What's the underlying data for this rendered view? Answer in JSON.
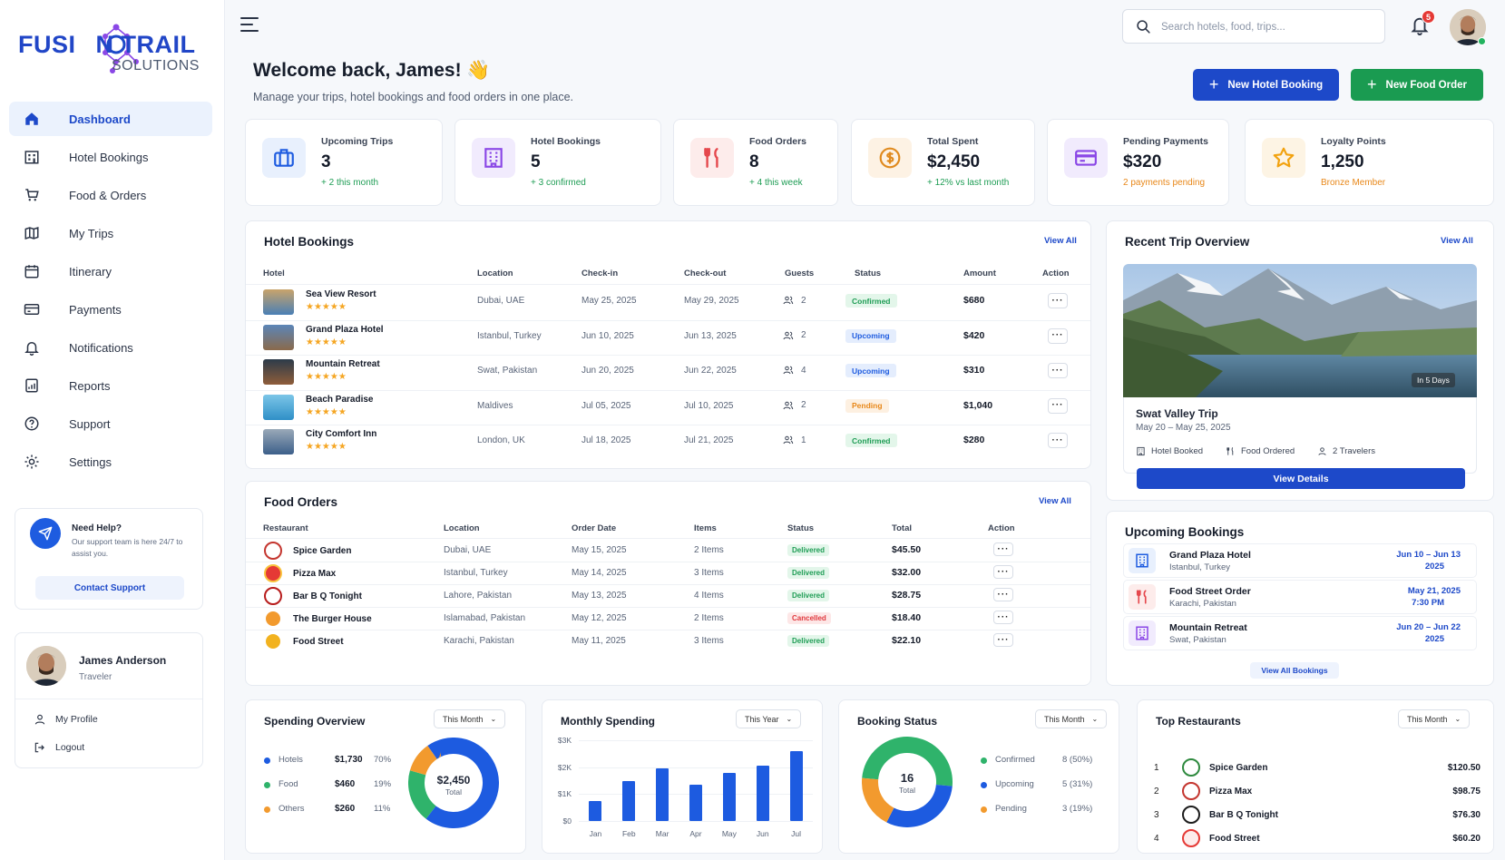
{
  "brand": {
    "name": "FUSI N TRAIL",
    "name_display": "FUSI_N TRAIL",
    "tagline": "SOLUTIONS"
  },
  "nav": [
    {
      "label": "Dashboard",
      "icon": "home-icon",
      "active": true
    },
    {
      "label": "Hotel Bookings",
      "icon": "hotel-icon"
    },
    {
      "label": "Food & Orders",
      "icon": "cart-icon"
    },
    {
      "label": "My Trips",
      "icon": "map-icon"
    },
    {
      "label": "Itinerary",
      "icon": "calendar-icon"
    },
    {
      "label": "Payments",
      "icon": "card-icon"
    },
    {
      "label": "Notifications",
      "icon": "bell-icon"
    },
    {
      "label": "Reports",
      "icon": "report-icon"
    },
    {
      "label": "Support",
      "icon": "help-icon"
    },
    {
      "label": "Settings",
      "icon": "gear-icon"
    }
  ],
  "help": {
    "title": "Need Help?",
    "text": "Our support team is here 24/7 to assist you.",
    "button": "Contact Support"
  },
  "user": {
    "name": "James Anderson",
    "role": "Traveler",
    "profile": "My Profile",
    "logout": "Logout"
  },
  "header": {
    "search_placeholder": "Search hotels, food, trips...",
    "notification_count": "5"
  },
  "welcome": {
    "title": "Welcome back, James! 👋",
    "subtitle": "Manage your trips, hotel bookings and food orders in one place."
  },
  "actions": {
    "new_hotel": "New Hotel Booking",
    "new_food": "New Food Order"
  },
  "stats": [
    {
      "label": "Upcoming Trips",
      "value": "3",
      "sub": "+ 2 this month",
      "sub_color": "#1f9d55",
      "icon": "suitcase-icon",
      "icon_bg": "#e8f0fd",
      "icon_color": "#1d5be0"
    },
    {
      "label": "Hotel Bookings",
      "value": "5",
      "sub": "+ 3 confirmed",
      "sub_color": "#1f9d55",
      "icon": "building-icon",
      "icon_bg": "#f1ebfd",
      "icon_color": "#8a47e6"
    },
    {
      "label": "Food Orders",
      "value": "8",
      "sub": "+ 4 this week",
      "sub_color": "#1f9d55",
      "icon": "utensils-icon",
      "icon_bg": "#fdeceb",
      "icon_color": "#e5484d"
    },
    {
      "label": "Total Spent",
      "value": "$2,450",
      "sub": "+ 12% vs last month",
      "sub_color": "#1f9d55",
      "icon": "dollar-icon",
      "icon_bg": "#fdf2e4",
      "icon_color": "#e08a1e"
    },
    {
      "label": "Pending Payments",
      "value": "$320",
      "sub": "2 payments pending",
      "sub_color": "#e8881a",
      "icon": "wallet-icon",
      "icon_bg": "#f1ebfd",
      "icon_color": "#8a47e6"
    },
    {
      "label": "Loyalty Points",
      "value": "1,250",
      "sub": "Bronze Member",
      "sub_color": "#e8881a",
      "icon": "star-icon",
      "icon_bg": "#fdf4e4",
      "icon_color": "#f2a20f"
    }
  ],
  "hotel_bookings": {
    "title": "Hotel Bookings",
    "view_all": "View All",
    "columns": [
      "Hotel",
      "Location",
      "Check-in",
      "Check-out",
      "Guests",
      "Status",
      "Amount",
      "Action"
    ],
    "rows": [
      {
        "hotel": "Sea View Resort",
        "rating": "★★★★★",
        "location": "Dubai, UAE",
        "checkin": "May 25, 2025",
        "checkout": "May 29, 2025",
        "guests": "2",
        "status": "Confirmed",
        "amount": "$680"
      },
      {
        "hotel": "Grand Plaza Hotel",
        "rating": "★★★★★",
        "location": "Istanbul, Turkey",
        "checkin": "Jun 10, 2025",
        "checkout": "Jun 13, 2025",
        "guests": "2",
        "status": "Upcoming",
        "amount": "$420"
      },
      {
        "hotel": "Mountain Retreat",
        "rating": "★★★★★",
        "location": "Swat, Pakistan",
        "checkin": "Jun 20, 2025",
        "checkout": "Jun 22, 2025",
        "guests": "4",
        "status": "Upcoming",
        "amount": "$310"
      },
      {
        "hotel": "Beach Paradise",
        "rating": "★★★★★",
        "location": "Maldives",
        "checkin": "Jul 05, 2025",
        "checkout": "Jul 10, 2025",
        "guests": "2",
        "status": "Pending",
        "amount": "$1,040"
      },
      {
        "hotel": "City Comfort Inn",
        "rating": "★★★★★",
        "location": "London, UK",
        "checkin": "Jul 18, 2025",
        "checkout": "Jul 21, 2025",
        "guests": "1",
        "status": "Confirmed",
        "amount": "$280"
      }
    ]
  },
  "food_orders": {
    "title": "Food Orders",
    "view_all": "View All",
    "columns": [
      "Restaurant",
      "Location",
      "Order Date",
      "Items",
      "Status",
      "Total",
      "Action"
    ],
    "rows": [
      {
        "restaurant": "Spice Garden",
        "location": "Dubai, UAE",
        "date": "May 15, 2025",
        "items": "2 Items",
        "status": "Delivered",
        "total": "$45.50"
      },
      {
        "restaurant": "Pizza Max",
        "location": "Istanbul, Turkey",
        "date": "May 14, 2025",
        "items": "3 Items",
        "status": "Delivered",
        "total": "$32.00"
      },
      {
        "restaurant": "Bar B Q Tonight",
        "location": "Lahore, Pakistan",
        "date": "May 13, 2025",
        "items": "4 Items",
        "status": "Delivered",
        "total": "$28.75"
      },
      {
        "restaurant": "The Burger House",
        "location": "Islamabad, Pakistan",
        "date": "May 12, 2025",
        "items": "2 Items",
        "status": "Cancelled",
        "total": "$18.40"
      },
      {
        "restaurant": "Food Street",
        "location": "Karachi, Pakistan",
        "date": "May 11, 2025",
        "items": "3 Items",
        "status": "Delivered",
        "total": "$22.10"
      }
    ]
  },
  "status_colors": {
    "Confirmed": {
      "bg": "#e3f6ea",
      "fg": "#1f9d55"
    },
    "Upcoming": {
      "bg": "#e4edfd",
      "fg": "#1d5be0"
    },
    "Pending": {
      "bg": "#fdf0e1",
      "fg": "#e8881a"
    },
    "Delivered": {
      "bg": "#e3f6ea",
      "fg": "#1f9d55"
    },
    "Cancelled": {
      "bg": "#fde7e7",
      "fg": "#e0393e"
    }
  },
  "recent_trip": {
    "title": "Recent Trip Overview",
    "view_all": "View All",
    "badge": "In 5 Days",
    "name": "Swat Valley Trip",
    "dates": "May 20 – May 25, 2025",
    "tags": [
      "Hotel Booked",
      "Food Ordered",
      "2 Travelers"
    ],
    "button": "View Details"
  },
  "upcoming_bookings": {
    "title": "Upcoming Bookings",
    "view_all": "View All Bookings",
    "items": [
      {
        "name": "Grand Plaza Hotel",
        "location": "Istanbul, Turkey",
        "date1": "Jun 10 – Jun 13",
        "date2": "2025",
        "icon": "building-icon",
        "icon_bg": "#e8f0fd",
        "icon_color": "#1d5be0"
      },
      {
        "name": "Food Street Order",
        "location": "Karachi, Pakistan",
        "date1": "May 21, 2025",
        "date2": "7:30 PM",
        "icon": "utensils-icon",
        "icon_bg": "#fdeceb",
        "icon_color": "#e5484d"
      },
      {
        "name": "Mountain Retreat",
        "location": "Swat, Pakistan",
        "date1": "Jun 20 – Jun 22",
        "date2": "2025",
        "icon": "building-icon",
        "icon_bg": "#f1ebfd",
        "icon_color": "#8a47e6"
      }
    ]
  },
  "spending_overview": {
    "title": "Spending Overview",
    "filter": "This Month",
    "total_value": "$2,450",
    "total_label": "Total",
    "items": [
      {
        "label": "Hotels",
        "amount": "$1,730",
        "pct": "70%",
        "value": 70,
        "color": "#1d5be0"
      },
      {
        "label": "Food",
        "amount": "$460",
        "pct": "19%",
        "value": 19,
        "color": "#2fb36b"
      },
      {
        "label": "Others",
        "amount": "$260",
        "pct": "11%",
        "value": 11,
        "color": "#f29a2e"
      }
    ]
  },
  "monthly_spending": {
    "title": "Monthly Spending",
    "filter": "This Year",
    "chart_data": {
      "type": "bar",
      "categories": [
        "Jan",
        "Feb",
        "Mar",
        "Apr",
        "May",
        "Jun",
        "Jul"
      ],
      "values": [
        750,
        1500,
        1950,
        1350,
        1800,
        2050,
        2600
      ],
      "yticks": [
        "$3K",
        "$2K",
        "$1K",
        "$0"
      ],
      "ylim": [
        0,
        3000
      ],
      "color": "#1d5be0"
    }
  },
  "booking_status": {
    "title": "Booking Status",
    "filter": "This Month",
    "total_value": "16",
    "total_label": "Total",
    "items": [
      {
        "label": "Confirmed",
        "count": "8 (50%)",
        "value": 50,
        "color": "#2fb36b"
      },
      {
        "label": "Upcoming",
        "count": "5 (31%)",
        "value": 31,
        "color": "#1d5be0"
      },
      {
        "label": "Pending",
        "count": "3 (19%)",
        "value": 19,
        "color": "#f29a2e"
      }
    ]
  },
  "top_restaurants": {
    "title": "Top Restaurants",
    "filter": "This Month",
    "items": [
      {
        "rank": "1",
        "name": "Spice Garden",
        "amount": "$120.50"
      },
      {
        "rank": "2",
        "name": "Pizza Max",
        "amount": "$98.75"
      },
      {
        "rank": "3",
        "name": "Bar B Q Tonight",
        "amount": "$76.30"
      },
      {
        "rank": "4",
        "name": "Food Street",
        "amount": "$60.20"
      }
    ]
  }
}
